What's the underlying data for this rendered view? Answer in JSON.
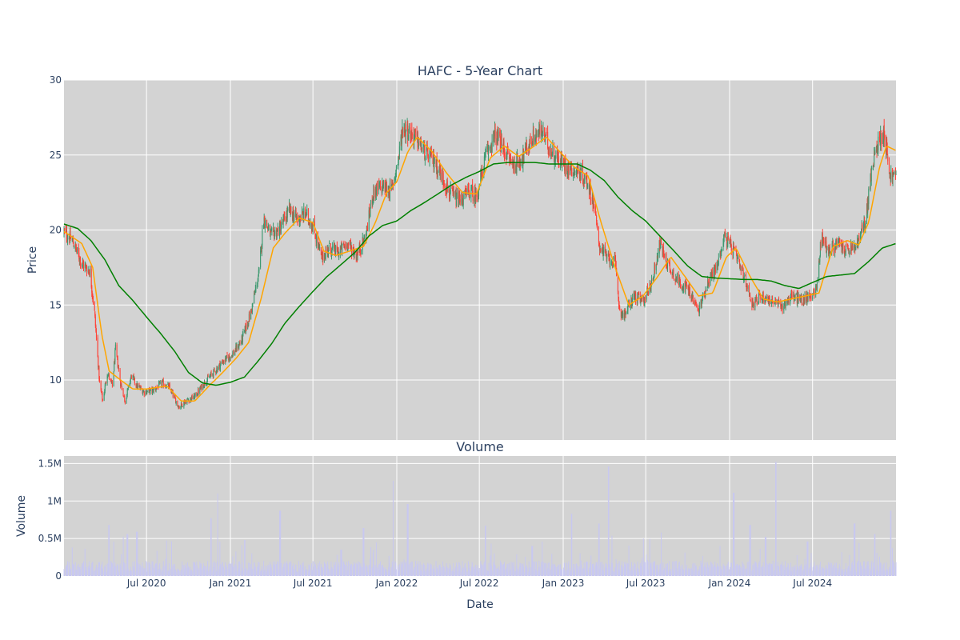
{
  "chart_data": [
    {
      "type": "candlestick",
      "title": "HAFC - 5-Year Chart",
      "xlabel": "",
      "ylabel": "Price",
      "ylim": [
        6,
        30
      ],
      "yticks": [
        10,
        15,
        20,
        25,
        30
      ],
      "xlim": [
        "2020-01-02",
        "2024-12-31"
      ],
      "grid": true,
      "legend": "none",
      "colors": {
        "increasing": "#3d9970",
        "decreasing": "#ff4136",
        "ma_short": "#ffa500",
        "ma_long": "#008000",
        "plot_bg": "#d3d3d3"
      },
      "close_anchors": [
        [
          "2020-01-02",
          19.9
        ],
        [
          "2020-01-20",
          19.3
        ],
        [
          "2020-02-10",
          17.8
        ],
        [
          "2020-02-28",
          17.2
        ],
        [
          "2020-03-09",
          14.5
        ],
        [
          "2020-03-20",
          9.8
        ],
        [
          "2020-03-27",
          8.6
        ],
        [
          "2020-04-06",
          10.5
        ],
        [
          "2020-04-17",
          9.6
        ],
        [
          "2020-04-24",
          12.1
        ],
        [
          "2020-05-05",
          9.8
        ],
        [
          "2020-05-15",
          8.6
        ],
        [
          "2020-05-29",
          10.3
        ],
        [
          "2020-06-10",
          9.6
        ],
        [
          "2020-06-26",
          9.2
        ],
        [
          "2020-07-15",
          9.3
        ],
        [
          "2020-08-05",
          9.8
        ],
        [
          "2020-08-20",
          9.5
        ],
        [
          "2020-09-10",
          8.2
        ],
        [
          "2020-09-25",
          8.6
        ],
        [
          "2020-10-15",
          8.9
        ],
        [
          "2020-11-05",
          9.8
        ],
        [
          "2020-11-25",
          10.5
        ],
        [
          "2020-12-15",
          11.2
        ],
        [
          "2021-01-08",
          11.8
        ],
        [
          "2021-01-25",
          12.6
        ],
        [
          "2021-02-15",
          14.5
        ],
        [
          "2021-03-05",
          17.2
        ],
        [
          "2021-03-15",
          20.8
        ],
        [
          "2021-03-31",
          19.6
        ],
        [
          "2021-04-20",
          20.1
        ],
        [
          "2021-05-10",
          21.3
        ],
        [
          "2021-05-28",
          20.7
        ],
        [
          "2021-06-15",
          21.1
        ],
        [
          "2021-07-02",
          20.2
        ],
        [
          "2021-07-20",
          18.1
        ],
        [
          "2021-08-05",
          18.8
        ],
        [
          "2021-08-25",
          18.5
        ],
        [
          "2021-09-15",
          19.1
        ],
        [
          "2021-10-05",
          18.3
        ],
        [
          "2021-10-25",
          19.6
        ],
        [
          "2021-11-10",
          22.5
        ],
        [
          "2021-11-30",
          22.9
        ],
        [
          "2021-12-20",
          22.6
        ],
        [
          "2022-01-05",
          24.8
        ],
        [
          "2022-01-14",
          26.9
        ],
        [
          "2022-02-10",
          26.2
        ],
        [
          "2022-03-05",
          25.1
        ],
        [
          "2022-03-25",
          24.6
        ],
        [
          "2022-04-10",
          23.6
        ],
        [
          "2022-04-28",
          22.4
        ],
        [
          "2022-05-18",
          21.9
        ],
        [
          "2022-06-10",
          22.6
        ],
        [
          "2022-06-25",
          22.2
        ],
        [
          "2022-07-15",
          24.9
        ],
        [
          "2022-08-05",
          26.4
        ],
        [
          "2022-08-25",
          25.3
        ],
        [
          "2022-09-15",
          24.3
        ],
        [
          "2022-10-05",
          24.9
        ],
        [
          "2022-10-25",
          26.1
        ],
        [
          "2022-11-15",
          26.6
        ],
        [
          "2022-12-05",
          25.3
        ],
        [
          "2022-12-25",
          24.6
        ],
        [
          "2023-01-15",
          24.1
        ],
        [
          "2023-02-05",
          23.9
        ],
        [
          "2023-02-25",
          23.1
        ],
        [
          "2023-03-10",
          21.6
        ],
        [
          "2023-03-20",
          19.1
        ],
        [
          "2023-04-05",
          18.2
        ],
        [
          "2023-04-25",
          17.8
        ],
        [
          "2023-05-05",
          14.6
        ],
        [
          "2023-05-15",
          14.3
        ],
        [
          "2023-06-05",
          15.6
        ],
        [
          "2023-06-25",
          15.2
        ],
        [
          "2023-07-15",
          16.6
        ],
        [
          "2023-08-01",
          19.1
        ],
        [
          "2023-08-20",
          17.6
        ],
        [
          "2023-09-10",
          16.6
        ],
        [
          "2023-10-01",
          16.1
        ],
        [
          "2023-10-25",
          14.6
        ],
        [
          "2023-11-15",
          16.6
        ],
        [
          "2023-12-05",
          17.6
        ],
        [
          "2023-12-20",
          19.6
        ],
        [
          "2024-01-10",
          18.6
        ],
        [
          "2024-02-05",
          16.6
        ],
        [
          "2024-02-20",
          15.1
        ],
        [
          "2024-03-10",
          15.6
        ],
        [
          "2024-04-01",
          15.3
        ],
        [
          "2024-04-25",
          14.9
        ],
        [
          "2024-05-15",
          15.6
        ],
        [
          "2024-06-10",
          15.3
        ],
        [
          "2024-06-25",
          15.6
        ],
        [
          "2024-07-10",
          16.1
        ],
        [
          "2024-07-20",
          19.6
        ],
        [
          "2024-08-05",
          18.6
        ],
        [
          "2024-08-25",
          19.1
        ],
        [
          "2024-09-15",
          18.6
        ],
        [
          "2024-10-05",
          18.9
        ],
        [
          "2024-10-25",
          20.6
        ],
        [
          "2024-11-06",
          23.6
        ],
        [
          "2024-11-20",
          25.8
        ],
        [
          "2024-12-05",
          26.6
        ],
        [
          "2024-12-18",
          23.6
        ],
        [
          "2024-12-31",
          23.6
        ]
      ],
      "ma_short_anchors": [
        [
          "2020-01-02",
          19.9
        ],
        [
          "2020-02-10",
          19.1
        ],
        [
          "2020-03-05",
          17.5
        ],
        [
          "2020-03-25",
          13.0
        ],
        [
          "2020-04-10",
          10.6
        ],
        [
          "2020-05-05",
          10.0
        ],
        [
          "2020-06-01",
          9.4
        ],
        [
          "2020-07-01",
          9.4
        ],
        [
          "2020-08-15",
          9.6
        ],
        [
          "2020-09-15",
          8.6
        ],
        [
          "2020-10-15",
          8.6
        ],
        [
          "2020-11-15",
          9.6
        ],
        [
          "2020-12-15",
          10.5
        ],
        [
          "2021-01-15",
          11.5
        ],
        [
          "2021-02-10",
          12.5
        ],
        [
          "2021-03-10",
          15.5
        ],
        [
          "2021-04-05",
          18.8
        ],
        [
          "2021-05-01",
          19.8
        ],
        [
          "2021-06-01",
          20.8
        ],
        [
          "2021-07-01",
          20.5
        ],
        [
          "2021-07-25",
          18.6
        ],
        [
          "2021-08-20",
          18.3
        ],
        [
          "2021-09-20",
          18.6
        ],
        [
          "2021-10-20",
          18.9
        ],
        [
          "2021-11-15",
          20.5
        ],
        [
          "2021-12-10",
          22.5
        ],
        [
          "2022-01-01",
          23.2
        ],
        [
          "2022-01-25",
          25.2
        ],
        [
          "2022-02-15",
          26.2
        ],
        [
          "2022-03-20",
          25.2
        ],
        [
          "2022-04-20",
          23.8
        ],
        [
          "2022-05-25",
          22.5
        ],
        [
          "2022-06-25",
          22.4
        ],
        [
          "2022-07-25",
          24.8
        ],
        [
          "2022-08-25",
          25.6
        ],
        [
          "2022-09-25",
          24.9
        ],
        [
          "2022-10-25",
          25.5
        ],
        [
          "2022-11-25",
          26.2
        ],
        [
          "2022-12-25",
          25.2
        ],
        [
          "2023-01-25",
          24.2
        ],
        [
          "2023-02-25",
          23.6
        ],
        [
          "2023-03-25",
          20.5
        ],
        [
          "2023-04-25",
          17.5
        ],
        [
          "2023-05-25",
          15.0
        ],
        [
          "2023-06-25",
          15.6
        ],
        [
          "2023-07-25",
          16.8
        ],
        [
          "2023-08-25",
          18.2
        ],
        [
          "2023-09-25",
          16.9
        ],
        [
          "2023-10-25",
          15.6
        ],
        [
          "2023-11-25",
          15.8
        ],
        [
          "2023-12-25",
          18.2
        ],
        [
          "2024-01-15",
          18.8
        ],
        [
          "2024-02-15",
          16.9
        ],
        [
          "2024-03-15",
          15.4
        ],
        [
          "2024-04-15",
          15.2
        ],
        [
          "2024-05-15",
          15.4
        ],
        [
          "2024-06-15",
          15.6
        ],
        [
          "2024-07-15",
          15.8
        ],
        [
          "2024-08-15",
          18.9
        ],
        [
          "2024-09-15",
          19.3
        ],
        [
          "2024-10-10",
          19.0
        ],
        [
          "2024-11-01",
          20.5
        ],
        [
          "2024-11-25",
          24.2
        ],
        [
          "2024-12-10",
          25.6
        ],
        [
          "2024-12-31",
          25.3
        ]
      ],
      "ma_long_anchors": [
        [
          "2020-01-02",
          20.4
        ],
        [
          "2020-02-01",
          20.1
        ],
        [
          "2020-03-01",
          19.3
        ],
        [
          "2020-04-01",
          18.0
        ],
        [
          "2020-05-01",
          16.3
        ],
        [
          "2020-06-01",
          15.3
        ],
        [
          "2020-07-01",
          14.2
        ],
        [
          "2020-08-01",
          13.1
        ],
        [
          "2020-09-01",
          11.9
        ],
        [
          "2020-10-01",
          10.5
        ],
        [
          "2020-11-01",
          9.8
        ],
        [
          "2020-12-01",
          9.65
        ],
        [
          "2021-01-01",
          9.85
        ],
        [
          "2021-02-01",
          10.2
        ],
        [
          "2021-03-01",
          11.2
        ],
        [
          "2021-04-01",
          12.4
        ],
        [
          "2021-05-01",
          13.8
        ],
        [
          "2021-06-01",
          14.9
        ],
        [
          "2021-07-01",
          15.9
        ],
        [
          "2021-08-01",
          16.9
        ],
        [
          "2021-09-01",
          17.7
        ],
        [
          "2021-10-01",
          18.5
        ],
        [
          "2021-11-01",
          19.6
        ],
        [
          "2021-12-01",
          20.3
        ],
        [
          "2022-01-01",
          20.6
        ],
        [
          "2022-02-01",
          21.3
        ],
        [
          "2022-03-01",
          21.8
        ],
        [
          "2022-04-01",
          22.4
        ],
        [
          "2022-05-01",
          23.0
        ],
        [
          "2022-06-01",
          23.5
        ],
        [
          "2022-07-01",
          23.9
        ],
        [
          "2022-08-01",
          24.4
        ],
        [
          "2022-09-01",
          24.5
        ],
        [
          "2022-10-01",
          24.5
        ],
        [
          "2022-11-01",
          24.5
        ],
        [
          "2022-12-01",
          24.4
        ],
        [
          "2023-01-01",
          24.4
        ],
        [
          "2023-02-01",
          24.4
        ],
        [
          "2023-03-01",
          24.0
        ],
        [
          "2023-04-01",
          23.3
        ],
        [
          "2023-05-01",
          22.2
        ],
        [
          "2023-06-01",
          21.3
        ],
        [
          "2023-07-01",
          20.6
        ],
        [
          "2023-08-01",
          19.6
        ],
        [
          "2023-09-01",
          18.6
        ],
        [
          "2023-10-01",
          17.6
        ],
        [
          "2023-11-01",
          16.9
        ],
        [
          "2023-12-01",
          16.8
        ],
        [
          "2024-01-01",
          16.75
        ],
        [
          "2024-02-01",
          16.7
        ],
        [
          "2024-03-01",
          16.7
        ],
        [
          "2024-04-01",
          16.6
        ],
        [
          "2024-05-01",
          16.3
        ],
        [
          "2024-06-01",
          16.1
        ],
        [
          "2024-07-01",
          16.5
        ],
        [
          "2024-08-01",
          16.9
        ],
        [
          "2024-09-01",
          17.0
        ],
        [
          "2024-10-01",
          17.1
        ],
        [
          "2024-11-01",
          17.9
        ],
        [
          "2024-12-01",
          18.8
        ],
        [
          "2024-12-31",
          19.1
        ]
      ]
    },
    {
      "type": "bar",
      "title": "Volume",
      "xlabel": "Date",
      "ylabel": "Volume",
      "ylim": [
        0,
        1600000
      ],
      "yticks": [
        0,
        500000,
        1000000,
        1500000
      ],
      "ytick_labels": [
        "0",
        "0.5M",
        "1M",
        "1.5M"
      ],
      "xticks": [
        "2020-07-01",
        "2021-01-01",
        "2021-07-01",
        "2022-01-01",
        "2022-07-01",
        "2023-01-01",
        "2023-07-01",
        "2024-01-01",
        "2024-07-01"
      ],
      "xtick_labels": [
        "Jul 2020",
        "Jan 2021",
        "Jul 2021",
        "Jan 2022",
        "Jul 2022",
        "Jan 2023",
        "Jul 2023",
        "Jan 2024",
        "Jul 2024"
      ],
      "bar_color": "#c8c8f0",
      "baseline": 150000,
      "spikes": [
        [
          "2020-04-10",
          680000
        ],
        [
          "2020-05-20",
          560000
        ],
        [
          "2020-06-10",
          590000
        ],
        [
          "2020-11-20",
          770000
        ],
        [
          "2020-12-05",
          1100000
        ],
        [
          "2021-02-01",
          480000
        ],
        [
          "2021-04-20",
          870000
        ],
        [
          "2021-09-01",
          350000
        ],
        [
          "2021-10-20",
          640000
        ],
        [
          "2021-12-25",
          1270000
        ],
        [
          "2022-01-25",
          960000
        ],
        [
          "2022-07-15",
          670000
        ],
        [
          "2022-10-25",
          400000
        ],
        [
          "2023-01-20",
          830000
        ],
        [
          "2023-03-20",
          700000
        ],
        [
          "2023-04-10",
          1460000
        ],
        [
          "2023-06-25",
          500000
        ],
        [
          "2023-08-05",
          580000
        ],
        [
          "2023-12-10",
          400000
        ],
        [
          "2024-01-10",
          1110000
        ],
        [
          "2024-02-15",
          680000
        ],
        [
          "2024-03-20",
          520000
        ],
        [
          "2024-04-12",
          1520000
        ],
        [
          "2024-06-20",
          460000
        ],
        [
          "2024-10-01",
          700000
        ],
        [
          "2024-11-15",
          560000
        ],
        [
          "2024-12-20",
          870000
        ]
      ]
    }
  ]
}
